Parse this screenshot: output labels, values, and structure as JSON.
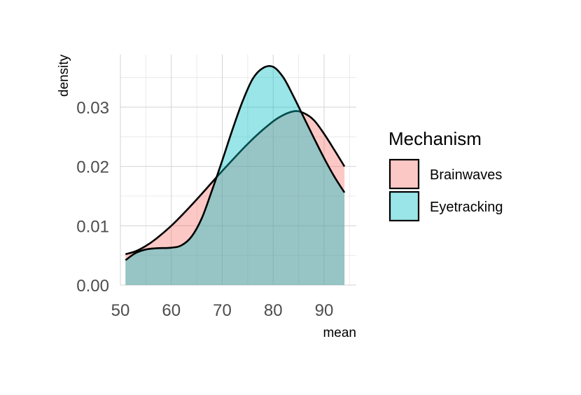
{
  "chart_data": {
    "type": "area",
    "subtype": "density",
    "title": "",
    "xlabel": "mean",
    "ylabel": "density",
    "xlim": [
      50,
      95
    ],
    "ylim": [
      0,
      0.038
    ],
    "x_ticks": [
      50,
      60,
      70,
      80,
      90
    ],
    "x_tick_labels": [
      "50",
      "60",
      "70",
      "80",
      "90"
    ],
    "y_ticks": [
      0.0,
      0.01,
      0.02,
      0.03
    ],
    "y_tick_labels": [
      "0.00",
      "0.01",
      "0.02",
      "0.03"
    ],
    "grid": true,
    "legend": {
      "title": "Mechanism",
      "position": "right"
    },
    "series": [
      {
        "name": "Brainwaves",
        "color": "#F8766D",
        "x": [
          51,
          53,
          55,
          57,
          60,
          63,
          66,
          69,
          72,
          75,
          78,
          81,
          84,
          86,
          88,
          90,
          92,
          94
        ],
        "y": [
          0.0052,
          0.0057,
          0.0066,
          0.0078,
          0.01,
          0.0126,
          0.0154,
          0.0183,
          0.0211,
          0.0238,
          0.0262,
          0.0282,
          0.0293,
          0.029,
          0.0278,
          0.0255,
          0.0228,
          0.02
        ]
      },
      {
        "name": "Eyetracking",
        "color": "#00BFC4",
        "x": [
          51,
          53,
          55,
          57,
          60,
          62,
          64,
          66,
          68,
          70,
          72,
          74,
          76,
          78,
          80,
          82,
          84,
          86,
          88,
          90,
          92,
          94
        ],
        "y": [
          0.0042,
          0.0054,
          0.006,
          0.0062,
          0.0063,
          0.0067,
          0.0082,
          0.0113,
          0.016,
          0.021,
          0.0262,
          0.031,
          0.0348,
          0.0366,
          0.0368,
          0.035,
          0.0318,
          0.0283,
          0.0248,
          0.0214,
          0.0183,
          0.0156
        ]
      }
    ]
  }
}
